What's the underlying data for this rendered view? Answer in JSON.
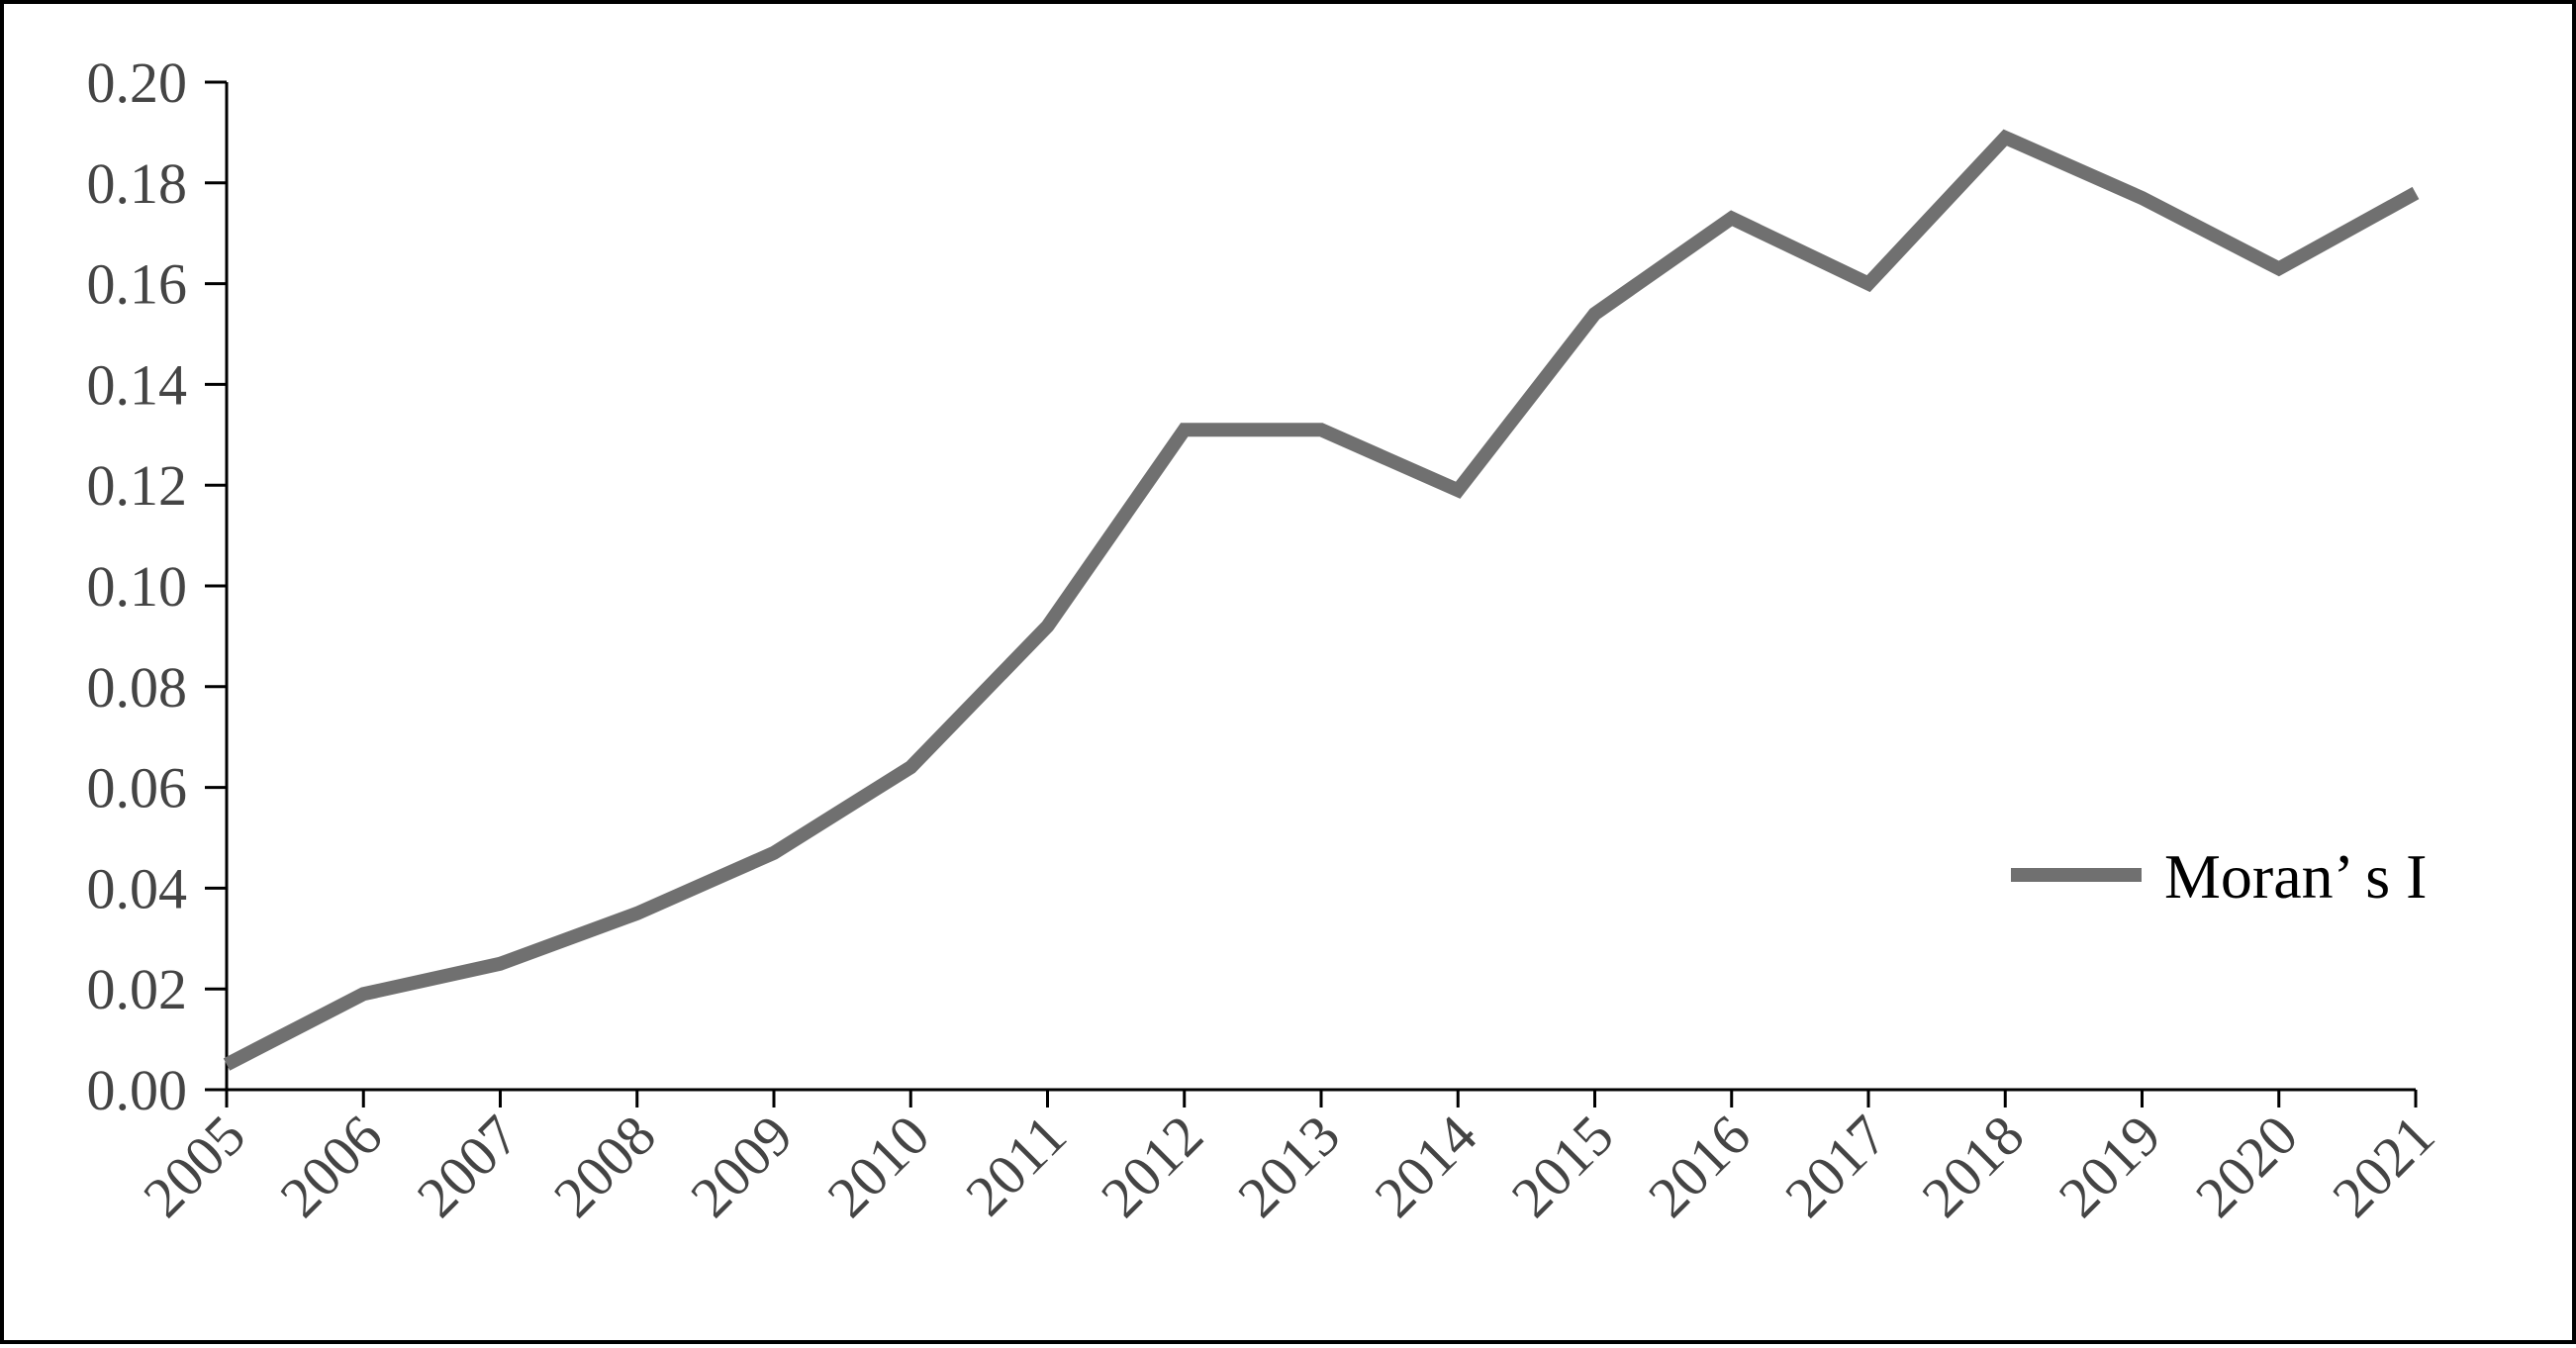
{
  "chart_data": {
    "type": "line",
    "x": [
      "2005",
      "2006",
      "2007",
      "2008",
      "2009",
      "2010",
      "2011",
      "2012",
      "2013",
      "2014",
      "2015",
      "2016",
      "2017",
      "2018",
      "2019",
      "2020",
      "2021"
    ],
    "series": [
      {
        "name": "Moran’ s I",
        "values": [
          0.005,
          0.019,
          0.025,
          0.035,
          0.047,
          0.064,
          0.092,
          0.131,
          0.131,
          0.119,
          0.154,
          0.173,
          0.16,
          0.189,
          0.177,
          0.163,
          0.178
        ],
        "color": "#707070"
      }
    ],
    "y_ticks": [
      "0.00",
      "0.02",
      "0.04",
      "0.06",
      "0.08",
      "0.10",
      "0.12",
      "0.14",
      "0.16",
      "0.18",
      "0.20"
    ],
    "ylim": [
      0,
      0.2
    ],
    "grid": false,
    "legend_position": "right"
  }
}
